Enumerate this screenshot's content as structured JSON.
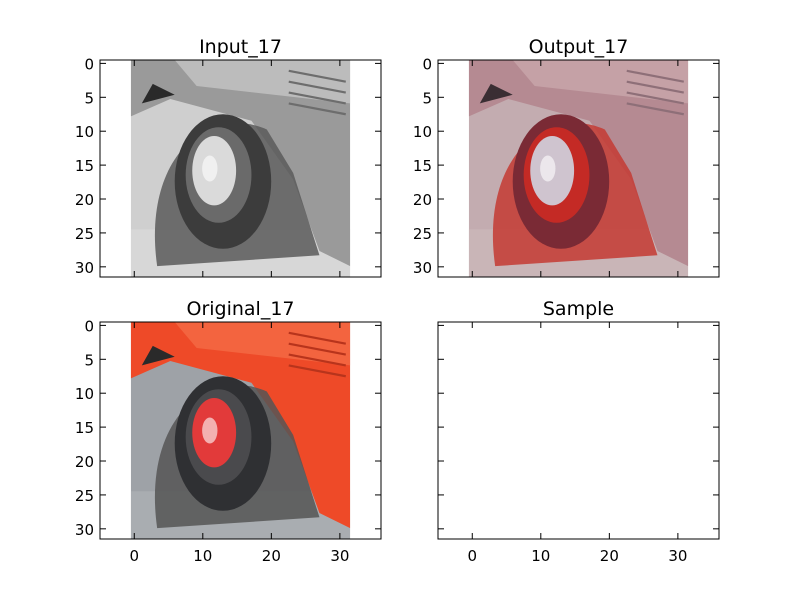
{
  "figure": {
    "background": "#ffffff"
  },
  "chart_data": [
    {
      "type": "image",
      "title": "Input_17",
      "xlabel": "",
      "ylabel": "",
      "xlim": [
        -5,
        36
      ],
      "ylim": [
        31.5,
        -0.5
      ],
      "x_ticks": [],
      "y_ticks": [
        0,
        5,
        10,
        15,
        20,
        25,
        30
      ],
      "image": {
        "content": "grayscale car wheel",
        "extent": [
          -0.5,
          31.5,
          31.5,
          -0.5
        ],
        "palette": "gray"
      }
    },
    {
      "type": "image",
      "title": "Output_17",
      "xlabel": "",
      "ylabel": "",
      "xlim": [
        -5,
        36
      ],
      "ylim": [
        31.5,
        -0.5
      ],
      "x_ticks": [],
      "y_ticks": [
        0,
        5,
        10,
        15,
        20,
        25,
        30
      ],
      "image": {
        "content": "colorized car wheel (muted pink/red)",
        "extent": [
          -0.5,
          31.5,
          31.5,
          -0.5
        ],
        "palette": "output"
      }
    },
    {
      "type": "image",
      "title": "Original_17",
      "xlabel": "",
      "ylabel": "",
      "xlim": [
        -5,
        36
      ],
      "ylim": [
        31.5,
        -0.5
      ],
      "x_ticks": [
        0,
        10,
        20,
        30
      ],
      "y_ticks": [
        0,
        5,
        10,
        15,
        20,
        25,
        30
      ],
      "image": {
        "content": "red car wheel",
        "extent": [
          -0.5,
          31.5,
          31.5,
          -0.5
        ],
        "palette": "original"
      }
    },
    {
      "type": "image",
      "title": "Sample",
      "xlabel": "",
      "ylabel": "",
      "xlim": [
        -5,
        36
      ],
      "ylim": [
        31.5,
        -0.5
      ],
      "x_ticks": [
        0,
        10,
        20,
        30
      ],
      "y_ticks": [],
      "image": null
    }
  ],
  "palettes": {
    "gray": {
      "body": "#9a9a9a",
      "bodyLight": "#c4c4c4",
      "ground": "#cfcfcf",
      "groundLight": "#dcdcdc",
      "arch": "#5a5a5a",
      "tire": "#3c3c3c",
      "tireRim": "#6a6a6a",
      "hub": "#dadada",
      "vent": "#6d6d6d",
      "dark": "#2a2a2a"
    },
    "output": {
      "body": "#b58a92",
      "bodyLight": "#c9a6ab",
      "ground": "#c3acb0",
      "groundLight": "#cdbabd",
      "arch": "#c43a32",
      "tire": "#7a2a35",
      "tireRim": "#c42a25",
      "hub": "#cfc4cf",
      "vent": "#8e6f78",
      "dark": "#3a2e33"
    },
    "original": {
      "body": "#ee4a28",
      "bodyLight": "#f46a45",
      "ground": "#9ea2a7",
      "groundLight": "#b1b4b8",
      "arch": "#555555",
      "tire": "#2f3033",
      "tireRim": "#4a4a4d",
      "hub": "#e23a3a",
      "vent": "#b8341c",
      "dark": "#2a2a2a"
    }
  }
}
